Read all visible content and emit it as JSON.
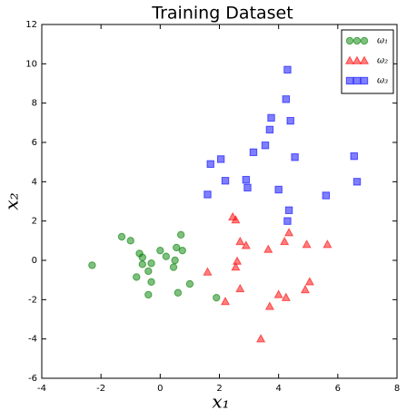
{
  "chart_data": {
    "type": "scatter",
    "title": "Training Dataset",
    "x_label": "x₁",
    "y_label": "x₂",
    "xlim": [
      -4,
      8
    ],
    "xticks": [
      -4,
      -2,
      0,
      2,
      4,
      6,
      8
    ],
    "ylim": [
      -6,
      12
    ],
    "yticks": [
      -6,
      -4,
      -2,
      0,
      2,
      4,
      6,
      8,
      10,
      12
    ],
    "legend": "upper right",
    "series": [
      {
        "name": "ω₁",
        "color": "#008000",
        "marker": "circle",
        "x": [
          -2.3,
          -1.3,
          -1.0,
          -0.7,
          -0.6,
          -0.6,
          -0.8,
          -0.4,
          -0.3,
          -0.4,
          -0.3,
          0.0,
          0.2,
          0.5,
          0.45,
          0.55,
          0.7,
          0.75,
          0.6,
          1.0,
          1.9
        ],
        "values": [
          -0.25,
          1.2,
          1.0,
          0.35,
          0.15,
          -0.2,
          -0.85,
          -0.55,
          -0.15,
          -1.75,
          -1.1,
          0.5,
          0.2,
          0.0,
          -0.35,
          0.65,
          1.3,
          0.5,
          -1.65,
          -1.2,
          -1.9
        ]
      },
      {
        "name": "ω₂",
        "color": "#ff0000",
        "marker": "triangle",
        "x": [
          1.6,
          2.2,
          2.45,
          2.55,
          2.7,
          2.6,
          2.55,
          2.7,
          2.9,
          3.4,
          3.65,
          3.7,
          4.0,
          4.2,
          4.35,
          4.25,
          4.95,
          4.9,
          5.05,
          5.65
        ],
        "values": [
          -0.6,
          -2.1,
          2.2,
          2.05,
          0.95,
          -0.05,
          -0.35,
          -1.45,
          0.75,
          -4.0,
          0.55,
          -2.35,
          -1.75,
          0.95,
          1.4,
          -1.9,
          0.8,
          -1.5,
          -1.1,
          0.8
        ]
      },
      {
        "name": "ω₃",
        "color": "#0000ff",
        "marker": "square",
        "x": [
          1.6,
          1.7,
          2.05,
          2.2,
          2.9,
          2.95,
          3.15,
          3.55,
          3.7,
          3.75,
          4.0,
          4.25,
          4.3,
          4.3,
          4.35,
          4.4,
          4.55,
          5.6,
          6.55,
          6.65
        ],
        "values": [
          3.35,
          4.9,
          5.15,
          4.05,
          4.1,
          3.7,
          5.5,
          5.85,
          6.65,
          7.25,
          3.6,
          8.2,
          9.7,
          2.0,
          2.55,
          7.1,
          5.25,
          3.3,
          5.3,
          4.0
        ]
      }
    ]
  }
}
